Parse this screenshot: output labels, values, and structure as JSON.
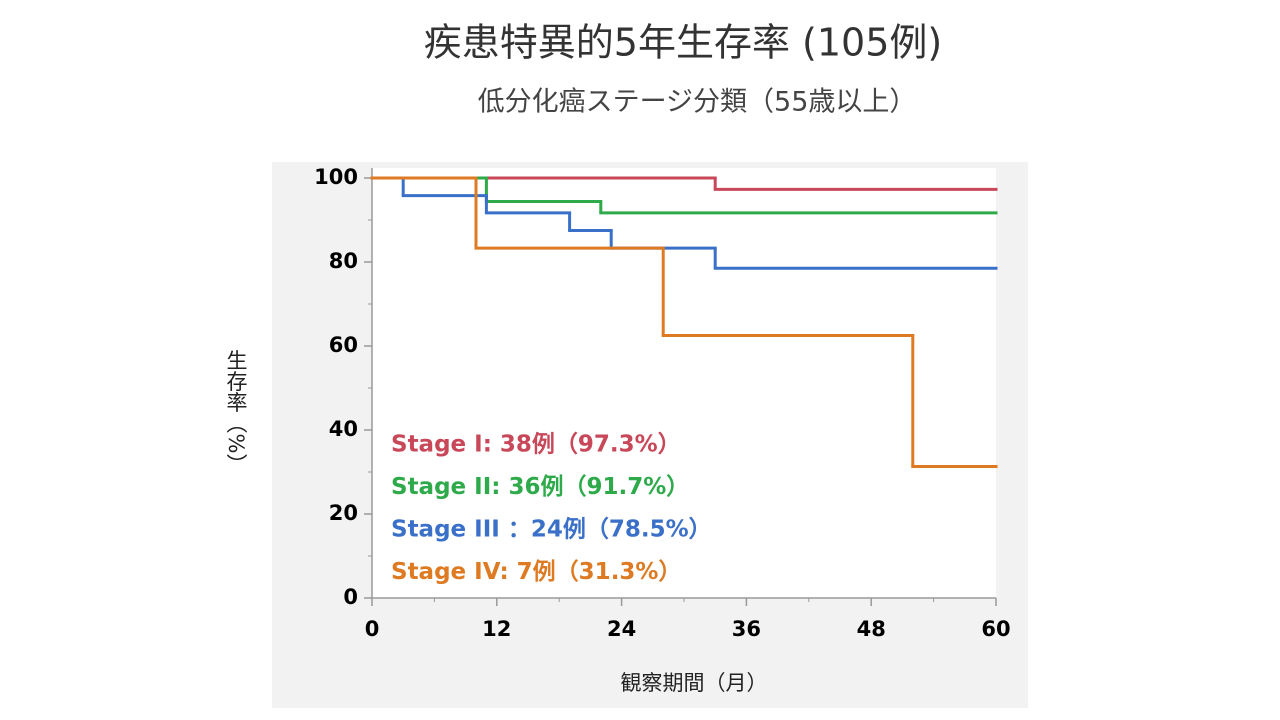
{
  "chart_data": {
    "type": "step",
    "title": "疾患特異的5年生存率 (105例)",
    "subtitle": "低分化癌ステージ分類（55歳以上）",
    "y_label": "生存率（%）",
    "x_label": "観察期間（月）",
    "xlim": [
      0,
      60
    ],
    "xticks": [
      0,
      12,
      24,
      36,
      48,
      60
    ],
    "xminorticks": [
      6,
      18,
      30,
      42,
      54
    ],
    "ylim": [
      0,
      100
    ],
    "yticks": [
      0,
      20,
      40,
      60,
      80,
      100
    ],
    "yminorticks": [
      10,
      30,
      50,
      70,
      90
    ],
    "series": [
      {
        "name": "Stage I: 38例（97.3%）",
        "color": "#c8485a",
        "x": [
          0,
          33,
          60
        ],
        "values": [
          100,
          97.3,
          97.3
        ]
      },
      {
        "name": "Stage II: 36例（91.7%）",
        "color": "#2eaa4a",
        "x": [
          0,
          11,
          22,
          60
        ],
        "values": [
          100,
          94.4,
          91.7,
          91.7
        ]
      },
      {
        "name": "Stage III ：24例（78.5%）",
        "color": "#3a70c8",
        "x": [
          0,
          3,
          11,
          19,
          23,
          33,
          60
        ],
        "values": [
          100,
          95.8,
          91.7,
          87.5,
          83.3,
          78.5,
          78.5
        ]
      },
      {
        "name": "Stage IV: 7例（31.3%）",
        "color": "#dd7a22",
        "x": [
          0,
          10,
          28,
          52,
          60
        ],
        "values": [
          100,
          83.3,
          62.5,
          31.3,
          31.3
        ]
      }
    ]
  }
}
